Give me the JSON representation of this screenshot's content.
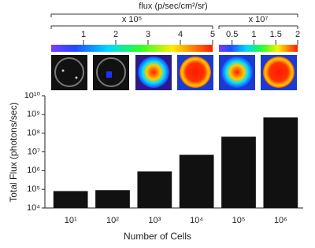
{
  "chart_data": {
    "type": "bar",
    "log_scale": true,
    "x_label": "Number of Cells",
    "y_label": "Total Flux (photons/sec)",
    "categories": [
      "10¹",
      "10²",
      "10³",
      "10⁴",
      "10⁵",
      "10⁶"
    ],
    "values": [
      80000,
      90000,
      900000,
      7000000,
      65000000,
      700000000
    ],
    "color": "#111111",
    "ylim": [
      10000,
      10000000000
    ],
    "yticks": [
      {
        "value": 10000,
        "label": "10⁴"
      },
      {
        "value": 100000,
        "label": "10⁵"
      },
      {
        "value": 1000000,
        "label": "10⁶"
      },
      {
        "value": 10000000,
        "label": "10⁷"
      },
      {
        "value": 100000000,
        "label": "10⁸"
      },
      {
        "value": 1000000000,
        "label": "10⁹"
      },
      {
        "value": 10000000000,
        "label": "10¹⁰"
      }
    ]
  },
  "color_scale": {
    "title": "flux (p/sec/cm²/sr)",
    "scales": [
      {
        "multiplier": "x 10⁵",
        "xlim": [
          0,
          5
        ],
        "xticks": [
          1,
          2,
          3,
          4,
          5
        ]
      },
      {
        "multiplier": "x 10⁷",
        "xlim": [
          0.2,
          2
        ],
        "xticks": [
          0.5,
          1,
          {
            "value": 1.5,
            "label": "1.5"
          },
          2
        ]
      }
    ]
  }
}
